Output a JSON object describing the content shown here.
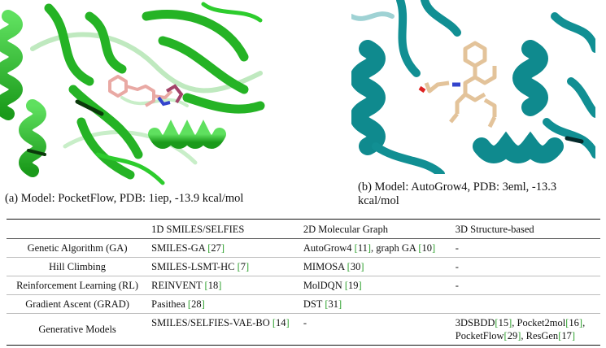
{
  "captions": {
    "a": "(a) Model: PocketFlow, PDB: 1iep, -13.9 kcal/mol",
    "b_line1": [
      "(b)",
      "Model:",
      "AutoGrow4,",
      "PDB:",
      "3eml,",
      "-13.3"
    ],
    "b_line2": "kcal/mol"
  },
  "colors": {
    "protein_a": "#2dbf2d",
    "protein_b": "#0f8a8e",
    "ligand_a": "#e9a9a4",
    "ligand_b": "#e3c39a",
    "citation": "#2ca02c"
  },
  "table": {
    "headers": [
      "",
      "1D SMILES/SELFIES",
      "2D Molecular Graph",
      "3D Structure-based"
    ],
    "rows": [
      {
        "method": "Genetic Algorithm (GA)",
        "smiles": [
          {
            "t": "SMILES-GA "
          },
          {
            "ref": "27"
          }
        ],
        "graph": [
          {
            "t": "AutoGrow4 "
          },
          {
            "ref": "11"
          },
          {
            "t": ", graph GA "
          },
          {
            "ref": "10"
          }
        ],
        "structure": [
          {
            "t": "-"
          }
        ]
      },
      {
        "method": "Hill Climbing",
        "smiles": [
          {
            "t": "SMILES-LSMT-HC "
          },
          {
            "ref": "7"
          }
        ],
        "graph": [
          {
            "t": "MIMOSA "
          },
          {
            "ref": "30"
          }
        ],
        "structure": [
          {
            "t": "-"
          }
        ]
      },
      {
        "method": "Reinforcement Learning (RL)",
        "smiles": [
          {
            "t": "REINVENT "
          },
          {
            "ref": "18"
          }
        ],
        "graph": [
          {
            "t": "MolDQN "
          },
          {
            "ref": "19"
          }
        ],
        "structure": [
          {
            "t": "-"
          }
        ]
      },
      {
        "method": "Gradient Ascent (GRAD)",
        "smiles": [
          {
            "t": "Pasithea "
          },
          {
            "ref": "28"
          }
        ],
        "graph": [
          {
            "t": "DST "
          },
          {
            "ref": "31"
          }
        ],
        "structure": []
      },
      {
        "method": "Generative Models",
        "smiles": [
          {
            "t": "SMILES/SELFIES-VAE-BO "
          },
          {
            "ref": "14"
          }
        ],
        "graph": [
          {
            "t": "-"
          }
        ],
        "structure": [
          {
            "t": "3DSBDD"
          },
          {
            "ref": "15"
          },
          {
            "t": ", Pocket2mol"
          },
          {
            "ref": "16"
          },
          {
            "t": ", PocketFlow"
          },
          {
            "ref": "29"
          },
          {
            "t": ", ResGen"
          },
          {
            "ref": "17"
          }
        ]
      }
    ]
  }
}
